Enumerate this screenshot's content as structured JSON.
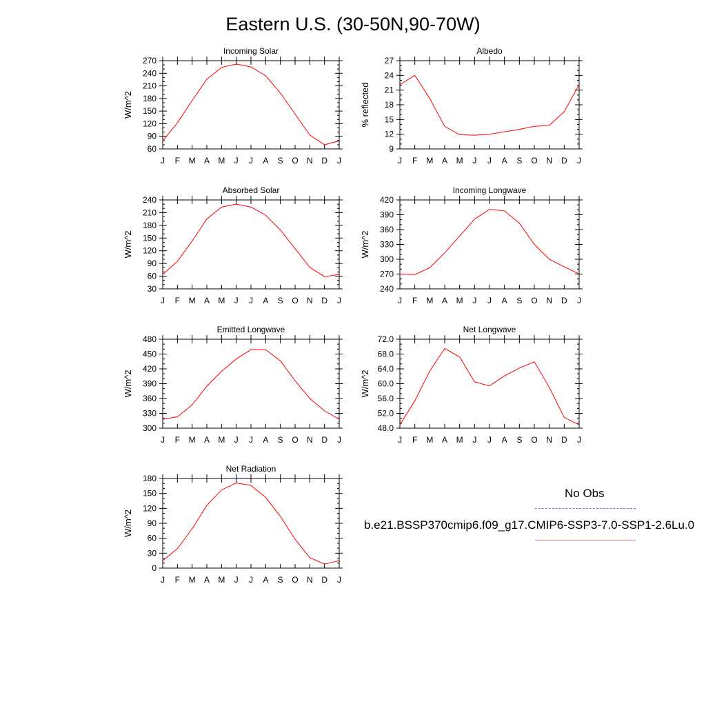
{
  "title": "Eastern U.S. (30-50N,90-70W)",
  "month_labels": [
    "J",
    "F",
    "M",
    "A",
    "M",
    "J",
    "J",
    "A",
    "S",
    "O",
    "N",
    "D",
    "J"
  ],
  "legend": {
    "obs_label": "No Obs",
    "obs_color": "#7b7bd8",
    "model_label": "b.e21.BSSP370cmip6.f09_g17.CMIP6-SSP3-7.0-SSP1-2.6Lu.0",
    "model_color": "#e98080"
  },
  "series_color": "#ff0000",
  "chart_data": [
    {
      "type": "line",
      "title": "Incoming Solar",
      "ylabel": "W/m^2",
      "ylim": [
        60,
        270
      ],
      "yticks": [
        60,
        90,
        120,
        150,
        180,
        210,
        240,
        270
      ],
      "ytick_decimals": 0,
      "x": [
        "J",
        "F",
        "M",
        "A",
        "M",
        "J",
        "J",
        "A",
        "S",
        "O",
        "N",
        "D",
        "J"
      ],
      "series": [
        {
          "values": [
            79,
            122,
            175,
            226,
            254,
            262,
            255,
            234,
            193,
            143,
            93,
            70,
            79
          ]
        }
      ]
    },
    {
      "type": "line",
      "title": "Albedo",
      "ylabel": "% reflected",
      "ylim": [
        9,
        27
      ],
      "yticks": [
        9,
        12,
        15,
        18,
        21,
        24,
        27
      ],
      "ytick_decimals": 0,
      "x": [
        "J",
        "F",
        "M",
        "A",
        "M",
        "J",
        "J",
        "A",
        "S",
        "O",
        "N",
        "D",
        "J"
      ],
      "series": [
        {
          "values": [
            22.1,
            24.0,
            19.3,
            13.6,
            11.9,
            11.8,
            12.0,
            12.5,
            13.0,
            13.6,
            13.8,
            16.6,
            22.1
          ]
        }
      ]
    },
    {
      "type": "line",
      "title": "Absorbed Solar",
      "ylabel": "W/m^2",
      "ylim": [
        30,
        240
      ],
      "yticks": [
        30,
        60,
        90,
        120,
        150,
        180,
        210,
        240
      ],
      "ytick_decimals": 0,
      "x": [
        "J",
        "F",
        "M",
        "A",
        "M",
        "J",
        "J",
        "A",
        "S",
        "O",
        "N",
        "D",
        "J"
      ],
      "series": [
        {
          "values": [
            64,
            95,
            143,
            195,
            223,
            230,
            223,
            204,
            169,
            125,
            81,
            59,
            64
          ]
        }
      ]
    },
    {
      "type": "line",
      "title": "Incoming Longwave",
      "ylabel": "W/m^2",
      "ylim": [
        240,
        420
      ],
      "yticks": [
        240,
        270,
        300,
        330,
        360,
        390,
        420
      ],
      "ytick_decimals": 0,
      "x": [
        "J",
        "F",
        "M",
        "A",
        "M",
        "J",
        "J",
        "A",
        "S",
        "O",
        "N",
        "D",
        "J"
      ],
      "series": [
        {
          "values": [
            270,
            269,
            283,
            313,
            347,
            381,
            401,
            398,
            373,
            330,
            300,
            285,
            270
          ]
        }
      ]
    },
    {
      "type": "line",
      "title": "Emitted Longwave",
      "ylabel": "W/m^2",
      "ylim": [
        300,
        480
      ],
      "yticks": [
        300,
        330,
        360,
        390,
        420,
        450,
        480
      ],
      "ytick_decimals": 0,
      "x": [
        "J",
        "F",
        "M",
        "A",
        "M",
        "J",
        "J",
        "A",
        "S",
        "O",
        "N",
        "D",
        "J"
      ],
      "series": [
        {
          "values": [
            318,
            323,
            347,
            385,
            415,
            440,
            459,
            459,
            436,
            396,
            360,
            335,
            318
          ]
        }
      ]
    },
    {
      "type": "line",
      "title": "Net Longwave",
      "ylabel": "W/m^2",
      "ylim": [
        48,
        72
      ],
      "yticks": [
        48,
        52,
        56,
        60,
        64,
        68,
        72
      ],
      "ytick_decimals": 1,
      "x": [
        "J",
        "F",
        "M",
        "A",
        "M",
        "J",
        "J",
        "A",
        "S",
        "O",
        "N",
        "D",
        "J"
      ],
      "series": [
        {
          "values": [
            48.9,
            55.4,
            63.4,
            69.5,
            67.2,
            60.5,
            59.4,
            62.1,
            64.2,
            65.9,
            59.0,
            50.9,
            48.9
          ]
        }
      ]
    },
    {
      "type": "line",
      "title": "Net Radiation",
      "ylabel": "W/m^2",
      "ylim": [
        0,
        180
      ],
      "yticks": [
        0,
        30,
        60,
        90,
        120,
        150,
        180
      ],
      "ytick_decimals": 0,
      "x": [
        "J",
        "F",
        "M",
        "A",
        "M",
        "J",
        "J",
        "A",
        "S",
        "O",
        "N",
        "D",
        "J"
      ],
      "series": [
        {
          "values": [
            15,
            39,
            79,
            126,
            157,
            171,
            166,
            142,
            104,
            58,
            21,
            8,
            15
          ]
        }
      ]
    }
  ]
}
